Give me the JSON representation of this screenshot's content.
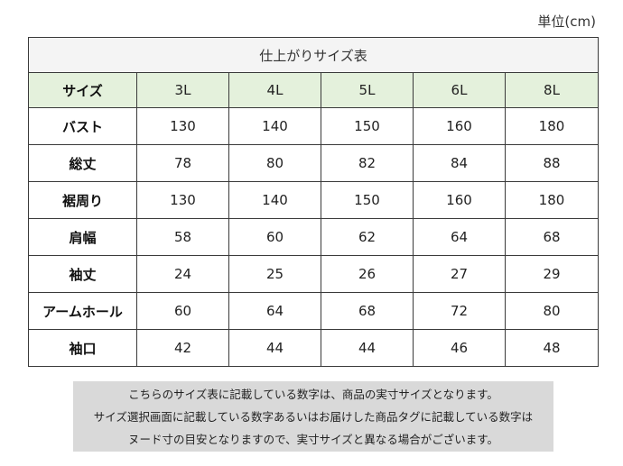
{
  "unit_label": "単位(cm)",
  "table": {
    "title": "仕上がりサイズ表",
    "header_label": "サイズ",
    "sizes": [
      "3L",
      "4L",
      "5L",
      "6L",
      "8L"
    ],
    "rows": [
      {
        "label": "バスト",
        "values": [
          "130",
          "140",
          "150",
          "160",
          "180"
        ]
      },
      {
        "label": "総丈",
        "values": [
          "78",
          "80",
          "82",
          "84",
          "88"
        ]
      },
      {
        "label": "裾周り",
        "values": [
          "130",
          "140",
          "150",
          "160",
          "180"
        ]
      },
      {
        "label": "肩幅",
        "values": [
          "58",
          "60",
          "62",
          "64",
          "68"
        ]
      },
      {
        "label": "袖丈",
        "values": [
          "24",
          "25",
          "26",
          "27",
          "29"
        ]
      },
      {
        "label": "アームホール",
        "values": [
          "60",
          "64",
          "68",
          "72",
          "80"
        ]
      },
      {
        "label": "袖口",
        "values": [
          "42",
          "44",
          "44",
          "46",
          "48"
        ]
      }
    ]
  },
  "note": {
    "lines": [
      "こちらのサイズ表に記載している数字は、商品の実寸サイズとなります。",
      "サイズ選択画面に記載している数字あるいはお届けした商品タグに記載している数字は",
      "ヌード寸の目安となりますので、実寸サイズと異なる場合がございます。"
    ]
  },
  "colors": {
    "header_bg": "#e4f1dc",
    "title_bg": "#f4f4f4",
    "note_bg": "#d9d9d9",
    "border": "#3a3a3a"
  }
}
